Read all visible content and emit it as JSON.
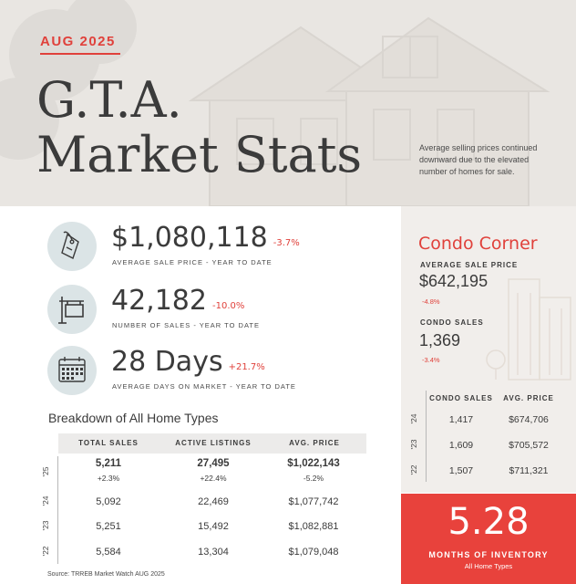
{
  "header": {
    "date_tag": "AUG 2025",
    "title_line1": "G.T.A.",
    "title_line2": "Market Stats",
    "note": "Average selling prices continued downward due to the elevated number of homes for sale."
  },
  "stats": [
    {
      "icon": "price-tag-icon",
      "value": "$1,080,118",
      "change": "-3.7%",
      "label": "AVERAGE SALE PRICE - YEAR TO DATE",
      "change_color": "#e0413b"
    },
    {
      "icon": "sale-sign-icon",
      "value": "42,182",
      "change": "-10.0%",
      "label": "NUMBER OF SALES - YEAR TO DATE",
      "change_color": "#e0413b"
    },
    {
      "icon": "calendar-icon",
      "value": "28 Days",
      "change": "+21.7%",
      "label": "AVERAGE DAYS ON MARKET - YEAR TO DATE",
      "change_color": "#e0413b"
    }
  ],
  "breakdown": {
    "title": "Breakdown of All Home Types",
    "columns": [
      "TOTAL SALES",
      "ACTIVE LISTINGS",
      "AVG. PRICE"
    ],
    "rows": [
      {
        "year": "'25",
        "total_sales": "5,211",
        "total_sales_chg": "+2.3%",
        "active_listings": "27,495",
        "active_listings_chg": "+22.4%",
        "avg_price": "$1,022,143",
        "avg_price_chg": "-5.2%"
      },
      {
        "year": "'24",
        "total_sales": "5,092",
        "active_listings": "22,469",
        "avg_price": "$1,077,742"
      },
      {
        "year": "'23",
        "total_sales": "5,251",
        "active_listings": "15,492",
        "avg_price": "$1,082,881"
      },
      {
        "year": "'22",
        "total_sales": "5,584",
        "active_listings": "13,304",
        "avg_price": "$1,079,048"
      }
    ],
    "source": "Source: TRREB Market Watch AUG 2025"
  },
  "condo": {
    "title": "Condo Corner",
    "avg_label": "AVERAGE SALE PRICE",
    "avg_value": "$642,195",
    "avg_change": "-4.8%",
    "sales_label": "CONDO SALES",
    "sales_value": "1,369",
    "sales_change": "-3.4%",
    "columns": [
      "CONDO SALES",
      "AVG. PRICE"
    ],
    "rows": [
      {
        "year": "'24",
        "sales": "1,417",
        "price": "$674,706"
      },
      {
        "year": "'23",
        "sales": "1,609",
        "price": "$705,572"
      },
      {
        "year": "'22",
        "sales": "1,507",
        "price": "$711,321"
      }
    ]
  },
  "inventory": {
    "value": "5.28",
    "label": "MONTHS OF INVENTORY",
    "sub": "All Home Types"
  },
  "colors": {
    "accent": "#e0413b",
    "inventory_bg": "#e8423c",
    "icon_circle": "#dbe4e6",
    "hero_bg": "#eae7e3"
  }
}
